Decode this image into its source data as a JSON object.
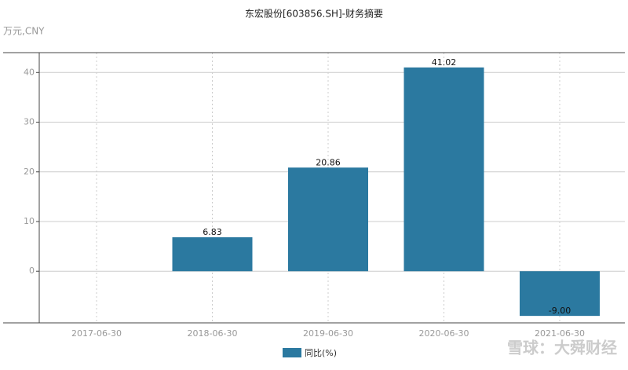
{
  "chart_data": {
    "type": "bar",
    "title": "东宏股份[603856.SH]-财务摘要",
    "unit": "万元,CNY",
    "categories": [
      "2017-06-30",
      "2018-06-30",
      "2019-06-30",
      "2020-06-30",
      "2021-06-30"
    ],
    "series": [
      {
        "name": "同比(%)",
        "color": "#2b79a0",
        "values": [
          null,
          6.83,
          20.86,
          41.02,
          -9.0
        ],
        "value_labels": [
          null,
          "6.83",
          "20.86",
          "41.02",
          "-9.00"
        ]
      }
    ],
    "ylim": [
      -10.4,
      44
    ],
    "yticks": [
      0,
      10,
      20,
      30,
      40
    ],
    "grid": true,
    "legend": "bottom",
    "watermark": "雪球：大舜财经"
  }
}
